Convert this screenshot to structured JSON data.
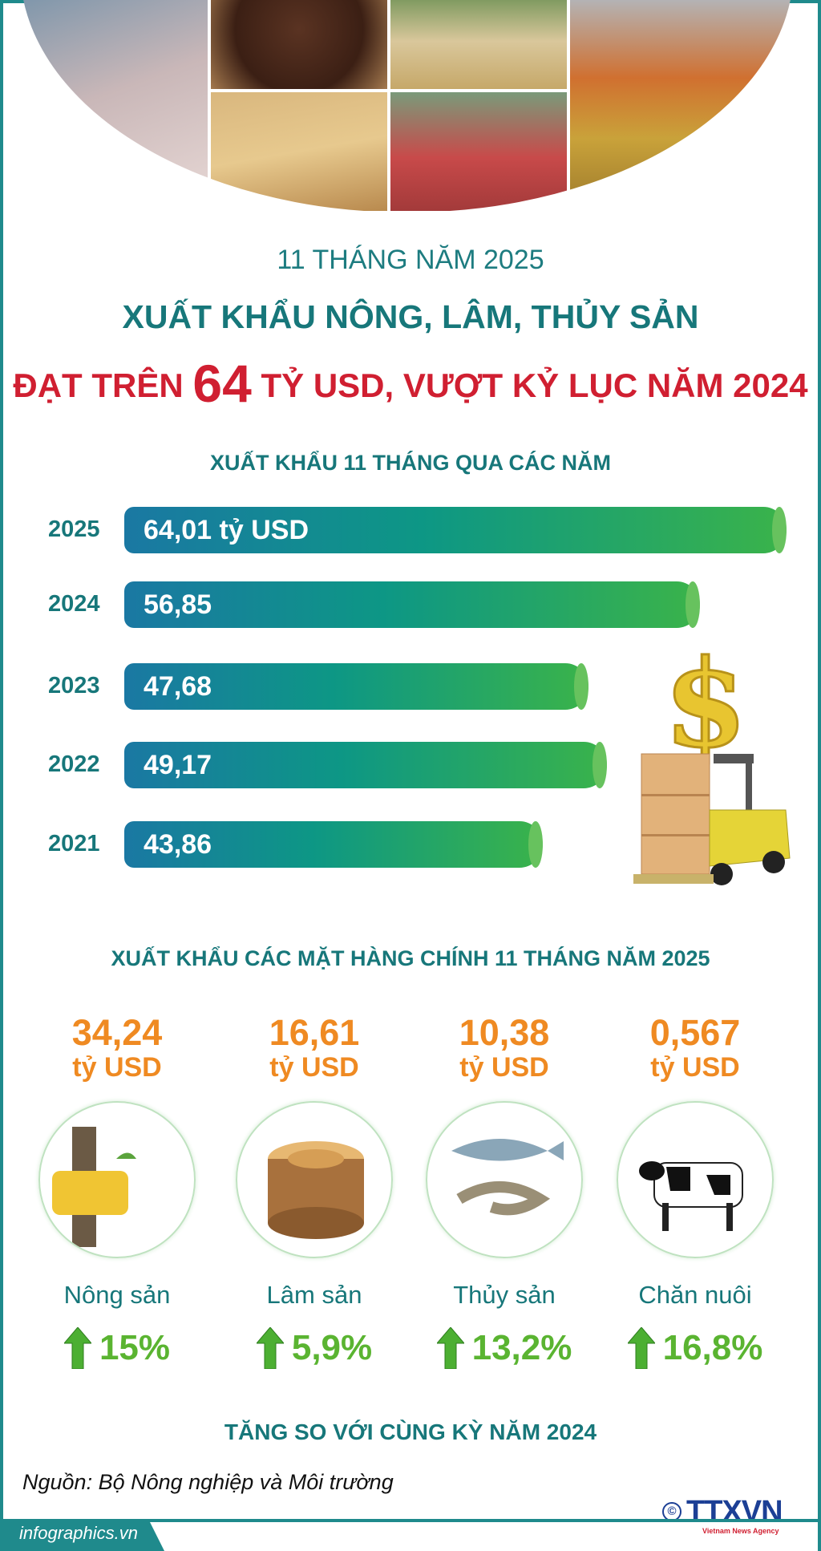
{
  "header": {
    "period": "11 THÁNG NĂM 2025",
    "title_line1": "XUẤT KHẨU NÔNG, LÂM, THỦY SẢN",
    "title_line2_pre": "ĐẠT TRÊN",
    "title_line2_big": "64",
    "title_line2_post": "TỶ USD, VƯỢT KỶ LỤC NĂM 2024"
  },
  "chart_data": {
    "type": "bar",
    "title": "XUẤT KHẨU 11 THÁNG QUA CÁC NĂM",
    "categories": [
      "2025",
      "2024",
      "2023",
      "2022",
      "2021"
    ],
    "values": [
      64.01,
      56.85,
      47.68,
      49.17,
      43.86
    ],
    "labels": [
      "64,01 tỷ USD",
      "56,85",
      "47,68",
      "49,17",
      "43,86"
    ],
    "unit": "tỷ USD",
    "colors": {
      "start": "#1a78a3",
      "end": "#3ab34a"
    }
  },
  "products": {
    "title": "XUẤT KHẨU CÁC MẶT HÀNG CHÍNH 11 THÁNG NĂM 2025",
    "items": [
      {
        "value": "34,24",
        "unit": "tỷ USD",
        "label": "Nông sản",
        "growth": "15%",
        "icon": "rubber-tree-icon"
      },
      {
        "value": "16,61",
        "unit": "tỷ USD",
        "label": "Lâm sản",
        "growth": "5,9%",
        "icon": "wood-log-icon"
      },
      {
        "value": "10,38",
        "unit": "tỷ USD",
        "label": "Thủy sản",
        "growth": "13,2%",
        "icon": "fish-shrimp-icon"
      },
      {
        "value": "0,567",
        "unit": "tỷ USD",
        "label": "Chăn nuôi",
        "growth": "16,8%",
        "icon": "cow-icon"
      }
    ],
    "footer": "TĂNG SO VỚI CÙNG KỲ NĂM 2024"
  },
  "source": "Nguồn: Bộ Nông nghiệp và Môi trường",
  "logo": {
    "text": "TTXVN",
    "sub": "Vietnam News Agency"
  },
  "site": "infographics.vn",
  "colors": {
    "teal": "#17777a",
    "red": "#d01f31",
    "orange": "#ef8a22",
    "green": "#5ab431"
  }
}
